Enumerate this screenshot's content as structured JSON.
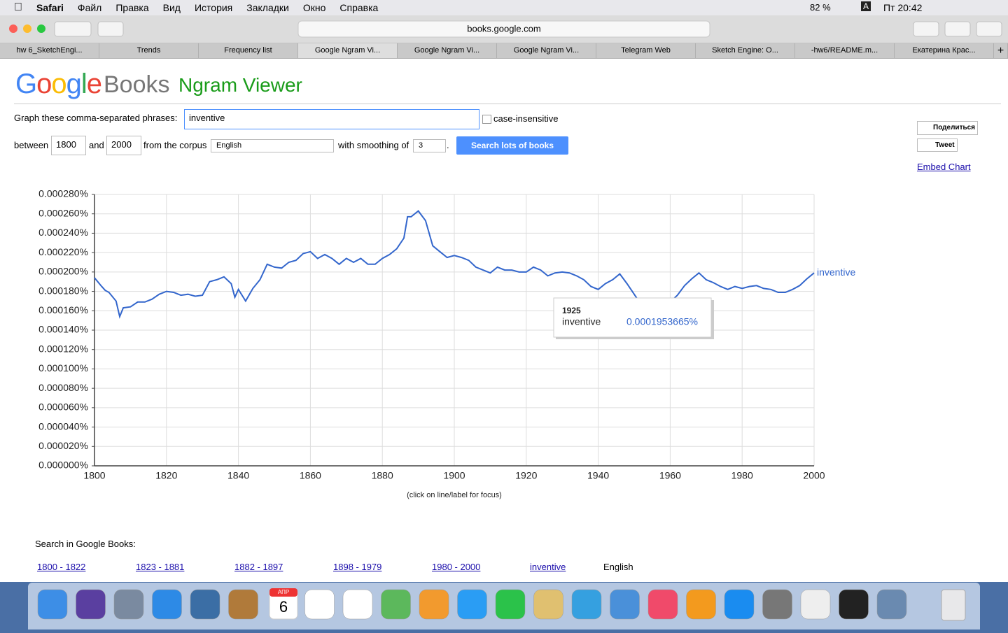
{
  "menubar": {
    "app": "Safari",
    "items": [
      "Файл",
      "Правка",
      "Вид",
      "История",
      "Закладки",
      "Окно",
      "Справка"
    ],
    "battery": "82 %",
    "input": "A",
    "clock": "Пт 20:42"
  },
  "toolbar": {
    "url": "books.google.com"
  },
  "tabs": [
    "hw 6_SketchEngi...",
    "Trends",
    "Frequency list",
    "Google Ngram Vi...",
    "Google Ngram Vi...",
    "Google Ngram Vi...",
    "Telegram Web",
    "Sketch Engine: O...",
    "-hw6/README.m...",
    "Екатерина Крас..."
  ],
  "page": {
    "logo": "Google",
    "logo_books": "Books",
    "title": "Ngram Viewer",
    "phrases_label": "Graph these comma-separated phrases:",
    "phrases": "inventive",
    "case_label": "case-insensitive",
    "between": "between",
    "from": "1800",
    "and": "and",
    "to": "2000",
    "corpus_label": "from the corpus",
    "corpus": "English",
    "smoothing_label": "with smoothing of",
    "smoothing": "3",
    "period": ".",
    "button": "Search lots of books",
    "share": "Поделиться",
    "tweet": "Tweet",
    "embed": "Embed Chart",
    "hint": "(click on line/label for focus)",
    "search_label": "Search in Google Books:",
    "links": [
      "1800 - 1822",
      "1823 - 1881",
      "1882 - 1897",
      "1898 - 1979",
      "1980 - 2000",
      "inventive"
    ],
    "corpus_name": "English"
  },
  "dock": {
    "calendar_month": "АПР",
    "calendar_day": "6"
  },
  "chart_data": {
    "type": "line",
    "x": [
      1800,
      1802,
      1803,
      1804,
      1806,
      1807,
      1808,
      1810,
      1812,
      1814,
      1816,
      1818,
      1820,
      1822,
      1824,
      1826,
      1828,
      1830,
      1832,
      1834,
      1836,
      1838,
      1839,
      1840,
      1842,
      1844,
      1846,
      1848,
      1850,
      1852,
      1854,
      1856,
      1858,
      1860,
      1862,
      1864,
      1866,
      1868,
      1870,
      1872,
      1874,
      1876,
      1878,
      1880,
      1882,
      1884,
      1886,
      1887,
      1888,
      1890,
      1892,
      1894,
      1896,
      1898,
      1900,
      1902,
      1904,
      1906,
      1908,
      1910,
      1912,
      1914,
      1916,
      1918,
      1920,
      1922,
      1924,
      1926,
      1928,
      1930,
      1932,
      1934,
      1936,
      1938,
      1940,
      1942,
      1944,
      1946,
      1948,
      1950,
      1952,
      1954,
      1956,
      1958,
      1960,
      1962,
      1964,
      1966,
      1968,
      1970,
      1972,
      1974,
      1976,
      1978,
      1980,
      1982,
      1984,
      1986,
      1988,
      1990,
      1992,
      1994,
      1996,
      1998,
      2000
    ],
    "series": [
      {
        "name": "inventive",
        "color": "#3366cc",
        "values": [
          0.000194,
          0.000185,
          0.000181,
          0.000179,
          0.00017,
          0.000154,
          0.000163,
          0.000164,
          0.000169,
          0.000169,
          0.000172,
          0.000177,
          0.00018,
          0.000179,
          0.000176,
          0.000177,
          0.000175,
          0.000176,
          0.00019,
          0.000192,
          0.000195,
          0.000188,
          0.000174,
          0.000182,
          0.00017,
          0.000183,
          0.000192,
          0.000208,
          0.000205,
          0.000204,
          0.00021,
          0.000212,
          0.000219,
          0.000221,
          0.000214,
          0.000218,
          0.000214,
          0.000208,
          0.000214,
          0.00021,
          0.000214,
          0.000208,
          0.000208,
          0.000214,
          0.000218,
          0.000224,
          0.000235,
          0.000257,
          0.000257,
          0.000263,
          0.000253,
          0.000227,
          0.000221,
          0.000215,
          0.000217,
          0.000215,
          0.000212,
          0.000205,
          0.000202,
          0.000199,
          0.000205,
          0.000202,
          0.000202,
          0.0002,
          0.0002,
          0.000205,
          0.000202,
          0.000196,
          0.000199,
          0.0002,
          0.000199,
          0.000196,
          0.000192,
          0.000185,
          0.000182,
          0.000188,
          0.000192,
          0.000198,
          0.000188,
          0.000177,
          0.000166,
          0.000161,
          0.000164,
          0.000166,
          0.000169,
          0.000176,
          0.000186,
          0.000193,
          0.000199,
          0.000192,
          0.000189,
          0.000185,
          0.000182,
          0.000185,
          0.000183,
          0.000185,
          0.000186,
          0.000183,
          0.000182,
          0.000179,
          0.000179,
          0.000182,
          0.000186,
          0.000193,
          0.000199
        ]
      }
    ],
    "xlim": [
      1800,
      2000
    ],
    "xticks": [
      1800,
      1820,
      1840,
      1860,
      1880,
      1900,
      1920,
      1940,
      1960,
      1980,
      2000
    ],
    "ylim": [
      0,
      0.00028
    ],
    "yticks": [
      {
        "value": 0,
        "label": "0.000000%"
      },
      {
        "value": 2e-05,
        "label": "0.000020%"
      },
      {
        "value": 4e-05,
        "label": "0.000040%"
      },
      {
        "value": 6e-05,
        "label": "0.000060%"
      },
      {
        "value": 8e-05,
        "label": "0.000080%"
      },
      {
        "value": 0.0001,
        "label": "0.000100%"
      },
      {
        "value": 0.00012,
        "label": "0.000120%"
      },
      {
        "value": 0.00014,
        "label": "0.000140%"
      },
      {
        "value": 0.00016,
        "label": "0.000160%"
      },
      {
        "value": 0.00018,
        "label": "0.000180%"
      },
      {
        "value": 0.0002,
        "label": "0.000200%"
      },
      {
        "value": 0.00022,
        "label": "0.000220%"
      },
      {
        "value": 0.00024,
        "label": "0.000240%"
      },
      {
        "value": 0.00026,
        "label": "0.000260%"
      },
      {
        "value": 0.00028,
        "label": "0.000280%"
      }
    ],
    "grid": true,
    "tooltip": {
      "year": 1925,
      "value_label": "0.0001953665%"
    }
  }
}
